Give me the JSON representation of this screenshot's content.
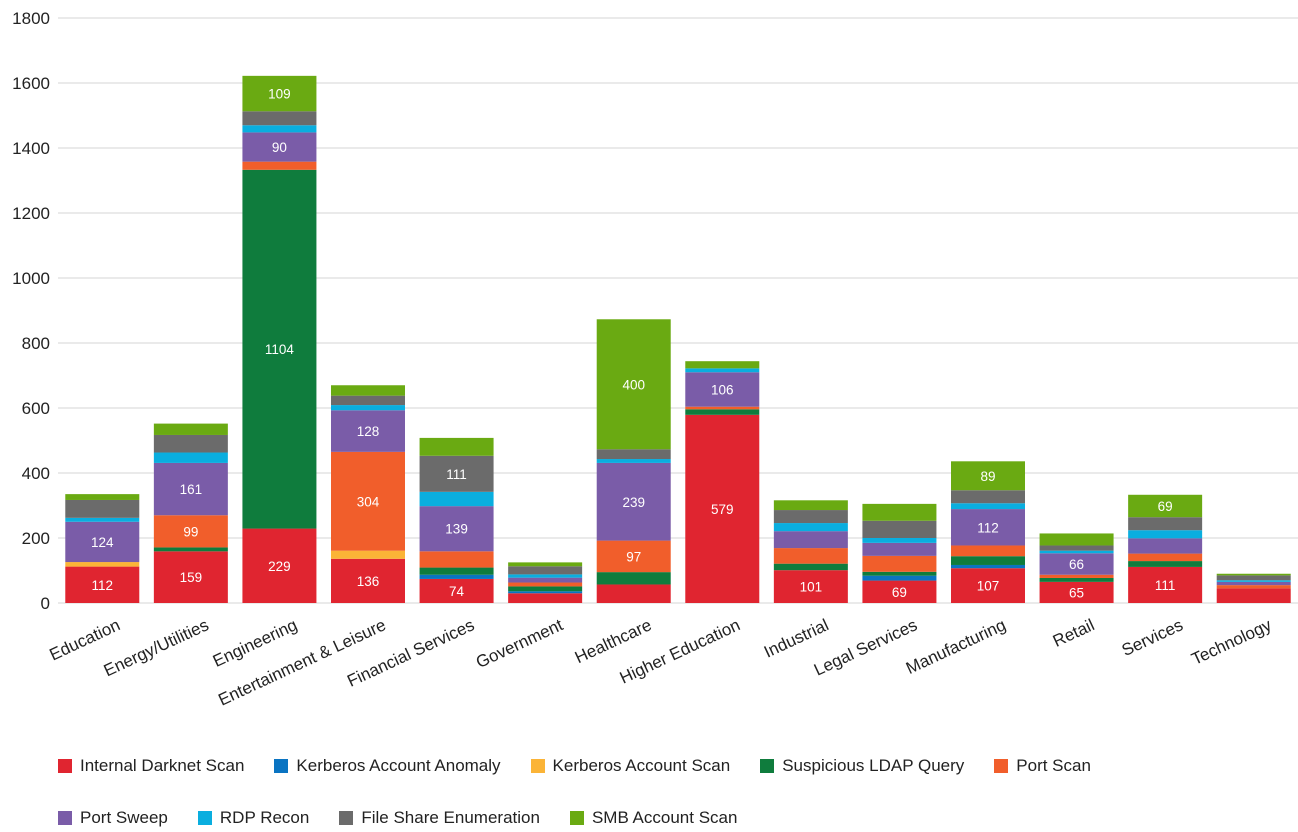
{
  "chart_data": {
    "type": "bar",
    "stacked": true,
    "title": "",
    "xlabel": "",
    "ylabel": "",
    "ylim": [
      0,
      1800
    ],
    "yticks": [
      0,
      200,
      400,
      600,
      800,
      1000,
      1200,
      1400,
      1600,
      1800
    ],
    "grid": true,
    "legend_position": "bottom",
    "categories": [
      "Education",
      "Energy/Utilities",
      "Engineering",
      "Entertainment & Leisure",
      "Financial Services",
      "Government",
      "Healthcare",
      "Higher Education",
      "Industrial",
      "Legal Services",
      "Manufacturing",
      "Retail",
      "Services",
      "Technology"
    ],
    "series": [
      {
        "name": "Internal Darknet Scan",
        "color": "#e02530",
        "values": [
          112,
          159,
          229,
          136,
          74,
          30,
          57,
          579,
          101,
          69,
          107,
          65,
          111,
          45
        ],
        "labels": [
          "112",
          "159",
          "229",
          "136",
          "74",
          "",
          "",
          "579",
          "101",
          "69",
          "107",
          "65",
          "111",
          ""
        ]
      },
      {
        "name": "Kerberos Account Anomaly",
        "color": "#0a74c2",
        "values": [
          0,
          0,
          0,
          0,
          13,
          6,
          0,
          0,
          0,
          15,
          10,
          0,
          0,
          0
        ],
        "labels": [
          "",
          "",
          "",
          "",
          "",
          "",
          "",
          "",
          "",
          "",
          "",
          "",
          "",
          ""
        ]
      },
      {
        "name": "Kerberos Account Scan",
        "color": "#fbb437",
        "values": [
          14,
          0,
          0,
          25,
          0,
          0,
          0,
          0,
          0,
          0,
          0,
          0,
          0,
          0
        ],
        "labels": [
          "",
          "",
          "",
          "",
          "",
          "",
          "",
          "",
          "",
          "",
          "",
          "",
          "",
          ""
        ]
      },
      {
        "name": "Suspicious LDAP Query",
        "color": "#0f7c3d",
        "values": [
          0,
          12,
          1104,
          0,
          22,
          15,
          38,
          17,
          20,
          12,
          27,
          12,
          18,
          0
        ],
        "labels": [
          "",
          "",
          "1104",
          "",
          "",
          "",
          "",
          "",
          "",
          "",
          "",
          "",
          "",
          ""
        ]
      },
      {
        "name": "Port Scan",
        "color": "#f15e2b",
        "values": [
          0,
          99,
          25,
          304,
          50,
          12,
          97,
          8,
          48,
          49,
          33,
          10,
          23,
          10
        ],
        "labels": [
          "",
          "99",
          "",
          "304",
          "",
          "",
          "97",
          "",
          "",
          "",
          "",
          "",
          "",
          ""
        ]
      },
      {
        "name": "Port Sweep",
        "color": "#7a5ca8",
        "values": [
          124,
          161,
          90,
          128,
          139,
          15,
          239,
          106,
          52,
          40,
          112,
          66,
          47,
          10
        ],
        "labels": [
          "124",
          "161",
          "90",
          "128",
          "139",
          "",
          "239",
          "106",
          "",
          "",
          "112",
          "66",
          "",
          ""
        ]
      },
      {
        "name": "RDP Recon",
        "color": "#0aaedf",
        "values": [
          12,
          32,
          22,
          16,
          44,
          10,
          12,
          12,
          25,
          15,
          18,
          8,
          25,
          5
        ],
        "labels": [
          "",
          "",
          "",
          "",
          "",
          "",
          "",
          "",
          "",
          "",
          "",
          "",
          "",
          ""
        ]
      },
      {
        "name": "File Share Enumeration",
        "color": "#6b6b6b",
        "values": [
          55,
          54,
          43,
          29,
          111,
          25,
          30,
          0,
          40,
          53,
          40,
          16,
          40,
          15
        ],
        "labels": [
          "",
          "",
          "",
          "",
          "111",
          "",
          "",
          "",
          "",
          "",
          "",
          "",
          "",
          ""
        ]
      },
      {
        "name": "SMB Account Scan",
        "color": "#6aaa12",
        "values": [
          18,
          35,
          109,
          32,
          55,
          12,
          400,
          22,
          30,
          52,
          89,
          37,
          69,
          5
        ],
        "labels": [
          "",
          "",
          "109",
          "",
          "",
          "",
          "400",
          "",
          "",
          "",
          "89",
          "",
          "69",
          ""
        ]
      }
    ]
  }
}
